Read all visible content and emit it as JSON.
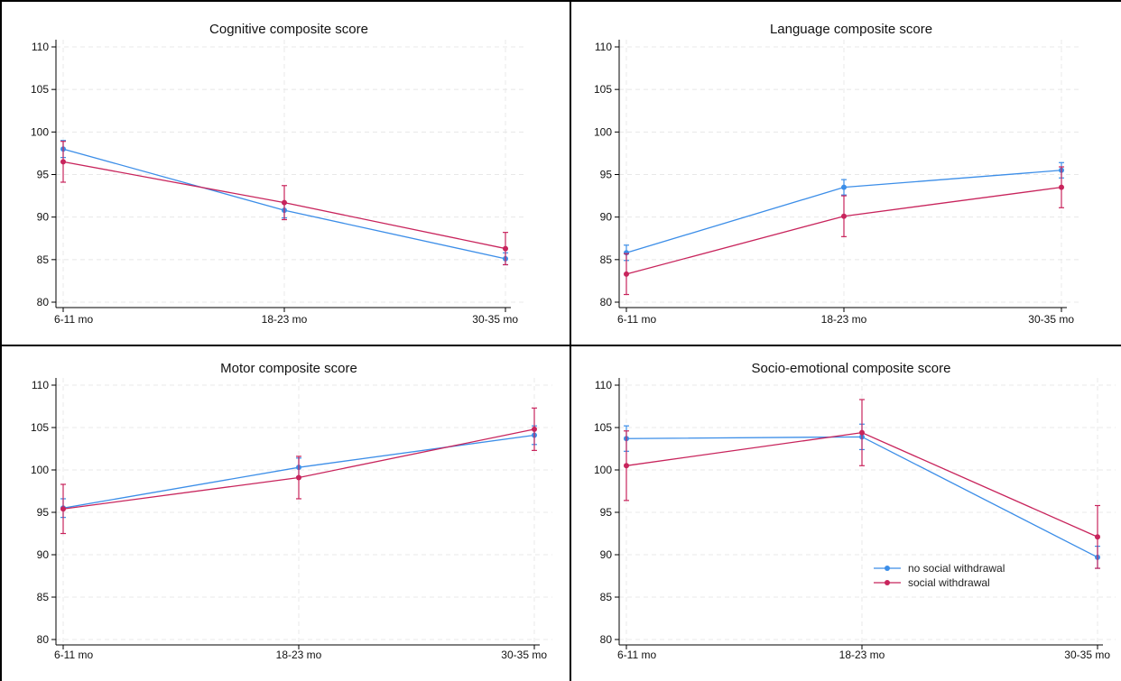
{
  "colors": {
    "no_social_withdrawal": "#3c8ee8",
    "social_withdrawal": "#c8245c",
    "grid": "#e8e8e8",
    "axis": "#000000",
    "panel_border": "#000000"
  },
  "chart_data": [
    {
      "type": "line",
      "title": "Cognitive composite score",
      "xlabel": "",
      "ylabel": "",
      "categories": [
        "6-11 mo",
        "18-23 mo",
        "30-35 mo"
      ],
      "yticks": [
        "80",
        "85",
        "90",
        "95",
        "100",
        "105",
        "110"
      ],
      "ylim": [
        80,
        110
      ],
      "grid": true,
      "series": [
        {
          "name": "no social withdrawal",
          "values": [
            98.0,
            90.8,
            85.1
          ],
          "lower": [
            97.0,
            89.9,
            84.4
          ],
          "upper": [
            99.0,
            91.7,
            85.8
          ]
        },
        {
          "name": "social withdrawal",
          "values": [
            96.5,
            91.7,
            86.3
          ],
          "lower": [
            94.1,
            89.7,
            84.4
          ],
          "upper": [
            98.9,
            93.7,
            88.2
          ]
        }
      ]
    },
    {
      "type": "line",
      "title": "Language composite score",
      "xlabel": "",
      "ylabel": "",
      "categories": [
        "6-11 mo",
        "18-23 mo",
        "30-35 mo"
      ],
      "yticks": [
        "80",
        "85",
        "90",
        "95",
        "100",
        "105",
        "110"
      ],
      "ylim": [
        80,
        110
      ],
      "grid": true,
      "series": [
        {
          "name": "no social withdrawal",
          "values": [
            85.8,
            93.5,
            95.5
          ],
          "lower": [
            84.9,
            92.6,
            94.6
          ],
          "upper": [
            86.7,
            94.4,
            96.4
          ]
        },
        {
          "name": "social withdrawal",
          "values": [
            83.3,
            90.1,
            93.5
          ],
          "lower": [
            80.9,
            87.7,
            91.1
          ],
          "upper": [
            85.7,
            92.5,
            95.9
          ]
        }
      ]
    },
    {
      "type": "line",
      "title": "Motor composite score",
      "xlabel": "",
      "ylabel": "",
      "categories": [
        "6-11 mo",
        "18-23 mo",
        "30-35 mo"
      ],
      "yticks": [
        "80",
        "85",
        "90",
        "95",
        "100",
        "105",
        "110"
      ],
      "ylim": [
        80,
        110
      ],
      "grid": true,
      "series": [
        {
          "name": "no social withdrawal",
          "values": [
            95.5,
            100.3,
            104.1
          ],
          "lower": [
            94.4,
            99.2,
            103.0
          ],
          "upper": [
            96.6,
            101.4,
            105.2
          ]
        },
        {
          "name": "social withdrawal",
          "values": [
            95.4,
            99.1,
            104.8
          ],
          "lower": [
            92.5,
            96.6,
            102.3
          ],
          "upper": [
            98.3,
            101.6,
            107.3
          ]
        }
      ]
    },
    {
      "type": "line",
      "title": "Socio-emotional composite score",
      "xlabel": "",
      "ylabel": "",
      "categories": [
        "6-11 mo",
        "18-23 mo",
        "30-35 mo"
      ],
      "yticks": [
        "80",
        "85",
        "90",
        "95",
        "100",
        "105",
        "110"
      ],
      "ylim": [
        80,
        110
      ],
      "grid": true,
      "legend": {
        "placement": "lower-right",
        "entries": [
          "no social withdrawal",
          "social withdrawal"
        ]
      },
      "series": [
        {
          "name": "no social withdrawal",
          "values": [
            103.7,
            103.9,
            89.7
          ],
          "lower": [
            102.2,
            102.4,
            88.4
          ],
          "upper": [
            105.2,
            105.4,
            91.0
          ]
        },
        {
          "name": "social withdrawal",
          "values": [
            100.5,
            104.4,
            92.1
          ],
          "lower": [
            96.4,
            100.5,
            88.4
          ],
          "upper": [
            104.6,
            108.3,
            95.8
          ]
        }
      ]
    }
  ]
}
